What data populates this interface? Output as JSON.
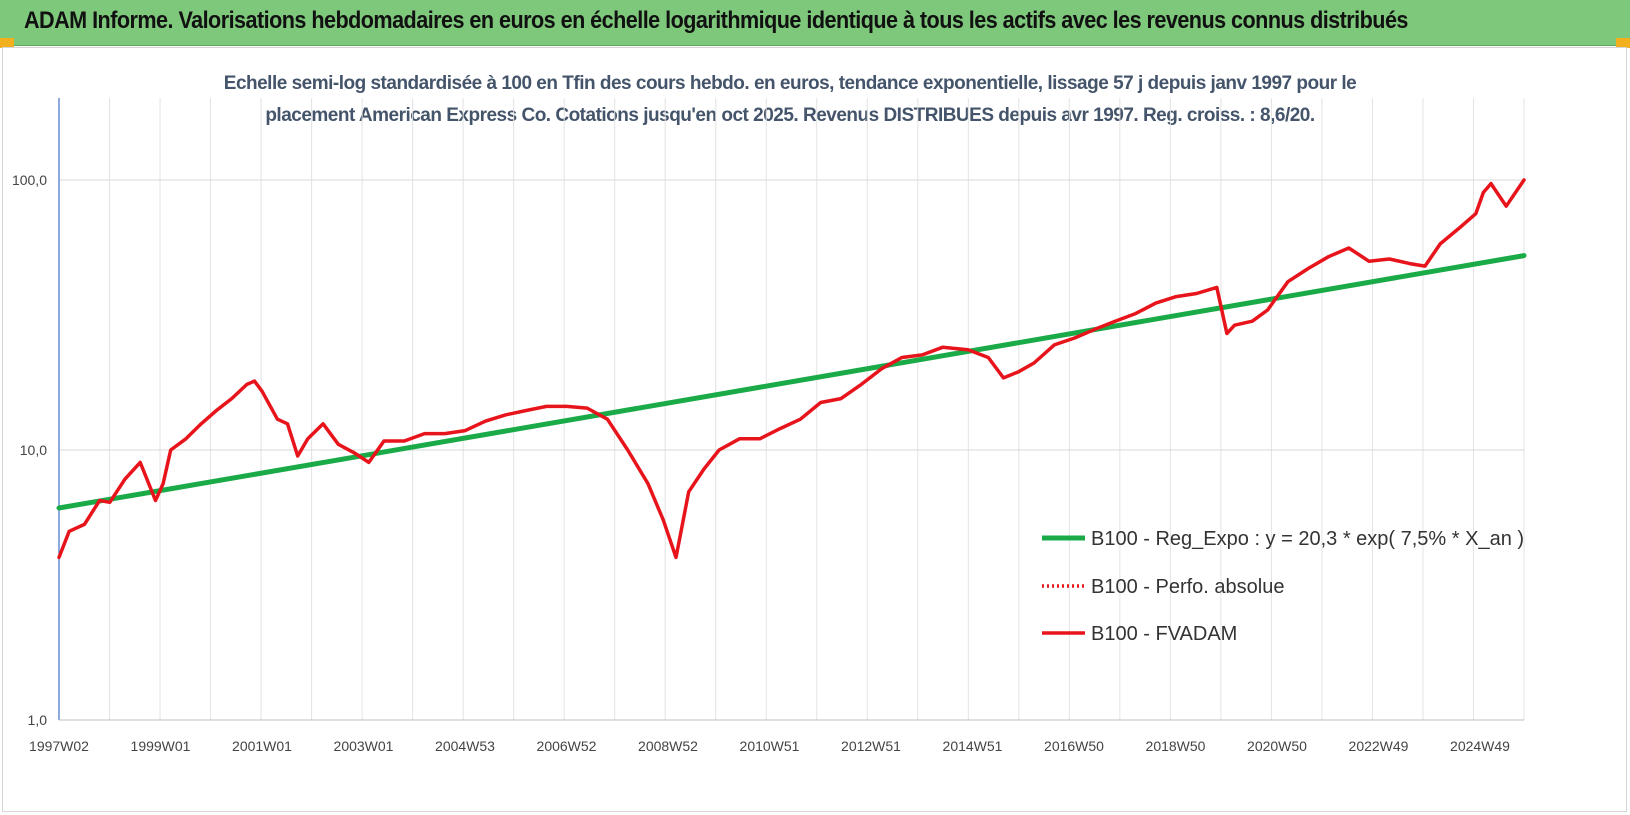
{
  "banner": {
    "title": "ADAM Informe. Valorisations hebdomadaires en euros en échelle logarithmique identique à tous les actifs avec les revenus connus distribués"
  },
  "chart_data": {
    "type": "line",
    "title": "Echelle semi-log standardisée à 100 en Tfin des cours hebdo. en euros, tendance exponentielle, lissage 57 j depuis janv 1997 pour le placement American Express Co. Cotations jusqu'en oct 2025. Revenus DISTRIBUES depuis avr 1997. Reg. croiss. : 8,6/20.",
    "yscale": "log",
    "ylim": [
      1,
      200
    ],
    "yticks": [
      "1,0",
      "10,0",
      "100,0"
    ],
    "ytick_values": [
      1,
      10,
      100
    ],
    "x_tick_labels": [
      "1997W02",
      "1999W01",
      "2001W01",
      "2003W01",
      "2004W53",
      "2006W52",
      "2008W52",
      "2010W51",
      "2012W51",
      "2014W51",
      "2016W50",
      "2018W50",
      "2020W50",
      "2022W49",
      "2024W49"
    ],
    "xlim": [
      1997.0,
      2025.85
    ],
    "grid": true,
    "legend_position": "right-center",
    "series": [
      {
        "name": "B100 - Reg_Expo : y = 20,3 * exp( 7,5% *  X_an )",
        "color": "#1aab48",
        "style": "solid",
        "x": [
          1997.0,
          2025.85
        ],
        "y": [
          6.1,
          52.5
        ]
      },
      {
        "name": "B100 - Perfo. absolue",
        "color": "#e8141b",
        "style": "dotted",
        "x": [],
        "y": []
      },
      {
        "name": "B100 - FVADAM",
        "color": "#e8141b",
        "style": "solid",
        "x": [
          1997.0,
          1997.2,
          1997.5,
          1997.8,
          1998.0,
          1998.3,
          1998.6,
          1998.9,
          1999.05,
          1999.2,
          1999.5,
          1999.8,
          2000.1,
          2000.4,
          2000.7,
          2000.85,
          2001.0,
          2001.3,
          2001.5,
          2001.7,
          2001.9,
          2002.2,
          2002.5,
          2002.8,
          2003.1,
          2003.4,
          2003.8,
          2004.2,
          2004.6,
          2005.0,
          2005.4,
          2005.8,
          2006.2,
          2006.6,
          2007.0,
          2007.4,
          2007.8,
          2008.2,
          2008.6,
          2008.9,
          2009.15,
          2009.4,
          2009.7,
          2010.0,
          2010.4,
          2010.8,
          2011.2,
          2011.6,
          2012.0,
          2012.4,
          2012.8,
          2013.2,
          2013.6,
          2014.0,
          2014.4,
          2014.9,
          2015.3,
          2015.6,
          2015.9,
          2016.2,
          2016.6,
          2017.0,
          2017.4,
          2017.8,
          2018.2,
          2018.6,
          2019.0,
          2019.4,
          2019.8,
          2020.0,
          2020.15,
          2020.5,
          2020.8,
          2021.2,
          2021.6,
          2022.0,
          2022.4,
          2022.8,
          2023.2,
          2023.6,
          2023.9,
          2024.2,
          2024.6,
          2024.9,
          2025.05,
          2025.2,
          2025.5,
          2025.85
        ],
        "y": [
          4.0,
          5.0,
          5.3,
          6.5,
          6.4,
          7.8,
          9.0,
          6.5,
          7.5,
          10.0,
          11.0,
          12.5,
          14.0,
          15.5,
          17.5,
          18.0,
          16.5,
          13.0,
          12.5,
          9.5,
          11.0,
          12.5,
          10.5,
          9.8,
          9.0,
          10.8,
          10.8,
          11.5,
          11.5,
          11.8,
          12.8,
          13.5,
          14.0,
          14.5,
          14.5,
          14.3,
          13.0,
          10.0,
          7.5,
          5.5,
          4.0,
          7.0,
          8.5,
          10.0,
          11.0,
          11.0,
          12.0,
          13.0,
          15.0,
          15.5,
          17.5,
          20.0,
          22.0,
          22.5,
          24.0,
          23.5,
          22.0,
          18.5,
          19.5,
          21.0,
          24.5,
          26.0,
          28.0,
          30.0,
          32.0,
          35.0,
          37.0,
          38.0,
          40.0,
          27.0,
          29.0,
          30.0,
          33.0,
          42.0,
          47.0,
          52.0,
          56.0,
          50.0,
          51.0,
          49.0,
          48.0,
          58.0,
          67.0,
          75.0,
          90.0,
          97.0,
          80.0,
          100.0
        ]
      }
    ]
  }
}
